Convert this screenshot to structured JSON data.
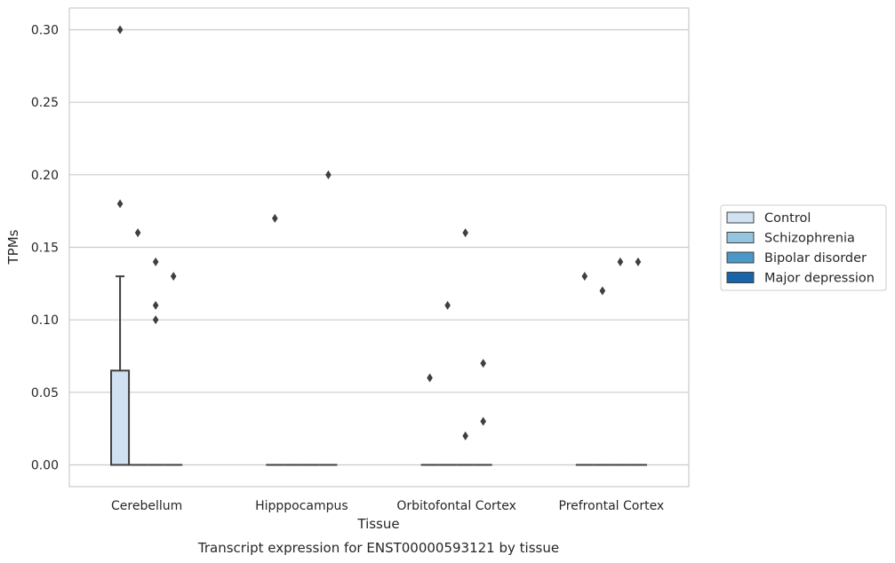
{
  "chart_data": {
    "type": "box",
    "title": "",
    "caption": "Transcript expression for ENST00000593121 by tissue",
    "xlabel": "Tissue",
    "ylabel": "TPMs",
    "ylim": [
      -0.015,
      0.315
    ],
    "yticks": [
      0.0,
      0.05,
      0.1,
      0.15,
      0.2,
      0.25,
      0.3
    ],
    "ytick_labels": [
      "0.00",
      "0.05",
      "0.10",
      "0.15",
      "0.20",
      "0.25",
      "0.30"
    ],
    "grid": "horizontal",
    "legend_position": "right",
    "categories": [
      "Cerebellum",
      "Hipppocampus",
      "Orbitofontal Cortex",
      "Prefrontal Cortex"
    ],
    "series": [
      {
        "name": "Control",
        "color": "#d0e1f2",
        "boxes": [
          {
            "category": "Cerebellum",
            "q1": 0.0,
            "median": 0.0,
            "q3": 0.065,
            "whisker_low": 0.0,
            "whisker_high": 0.13,
            "outliers": [
              0.3,
              0.18
            ]
          },
          {
            "category": "Hipppocampus",
            "q1": 0.0,
            "median": 0.0,
            "q3": 0.0,
            "whisker_low": 0.0,
            "whisker_high": 0.0,
            "outliers": [
              0.17
            ]
          },
          {
            "category": "Orbitofontal Cortex",
            "q1": 0.0,
            "median": 0.0,
            "q3": 0.0,
            "whisker_low": 0.0,
            "whisker_high": 0.0,
            "outliers": [
              0.06
            ]
          },
          {
            "category": "Prefrontal Cortex",
            "q1": 0.0,
            "median": 0.0,
            "q3": 0.0,
            "whisker_low": 0.0,
            "whisker_high": 0.0,
            "outliers": [
              0.13
            ]
          }
        ]
      },
      {
        "name": "Schizophrenia",
        "color": "#94c4df",
        "boxes": [
          {
            "category": "Cerebellum",
            "q1": 0.0,
            "median": 0.0,
            "q3": 0.0,
            "whisker_low": 0.0,
            "whisker_high": 0.0,
            "outliers": [
              0.16
            ]
          },
          {
            "category": "Hipppocampus",
            "q1": 0.0,
            "median": 0.0,
            "q3": 0.0,
            "whisker_low": 0.0,
            "whisker_high": 0.0,
            "outliers": []
          },
          {
            "category": "Orbitofontal Cortex",
            "q1": 0.0,
            "median": 0.0,
            "q3": 0.0,
            "whisker_low": 0.0,
            "whisker_high": 0.0,
            "outliers": [
              0.11
            ]
          },
          {
            "category": "Prefrontal Cortex",
            "q1": 0.0,
            "median": 0.0,
            "q3": 0.0,
            "whisker_low": 0.0,
            "whisker_high": 0.0,
            "outliers": [
              0.12
            ]
          }
        ]
      },
      {
        "name": "Bipolar disorder",
        "color": "#4a98c9",
        "boxes": [
          {
            "category": "Cerebellum",
            "q1": 0.0,
            "median": 0.0,
            "q3": 0.0,
            "whisker_low": 0.0,
            "whisker_high": 0.0,
            "outliers": [
              0.14,
              0.11,
              0.1
            ]
          },
          {
            "category": "Hipppocampus",
            "q1": 0.0,
            "median": 0.0,
            "q3": 0.0,
            "whisker_low": 0.0,
            "whisker_high": 0.0,
            "outliers": []
          },
          {
            "category": "Orbitofontal Cortex",
            "q1": 0.0,
            "median": 0.0,
            "q3": 0.0,
            "whisker_low": 0.0,
            "whisker_high": 0.0,
            "outliers": [
              0.16,
              0.02
            ]
          },
          {
            "category": "Prefrontal Cortex",
            "q1": 0.0,
            "median": 0.0,
            "q3": 0.0,
            "whisker_low": 0.0,
            "whisker_high": 0.0,
            "outliers": [
              0.14
            ]
          }
        ]
      },
      {
        "name": "Major depression",
        "color": "#1764ab",
        "boxes": [
          {
            "category": "Cerebellum",
            "q1": 0.0,
            "median": 0.0,
            "q3": 0.0,
            "whisker_low": 0.0,
            "whisker_high": 0.0,
            "outliers": [
              0.13
            ]
          },
          {
            "category": "Hipppocampus",
            "q1": 0.0,
            "median": 0.0,
            "q3": 0.0,
            "whisker_low": 0.0,
            "whisker_high": 0.0,
            "outliers": [
              0.2
            ]
          },
          {
            "category": "Orbitofontal Cortex",
            "q1": 0.0,
            "median": 0.0,
            "q3": 0.0,
            "whisker_low": 0.0,
            "whisker_high": 0.0,
            "outliers": [
              0.07,
              0.03
            ]
          },
          {
            "category": "Prefrontal Cortex",
            "q1": 0.0,
            "median": 0.0,
            "q3": 0.0,
            "whisker_low": 0.0,
            "whisker_high": 0.0,
            "outliers": [
              0.14
            ]
          }
        ]
      }
    ]
  }
}
